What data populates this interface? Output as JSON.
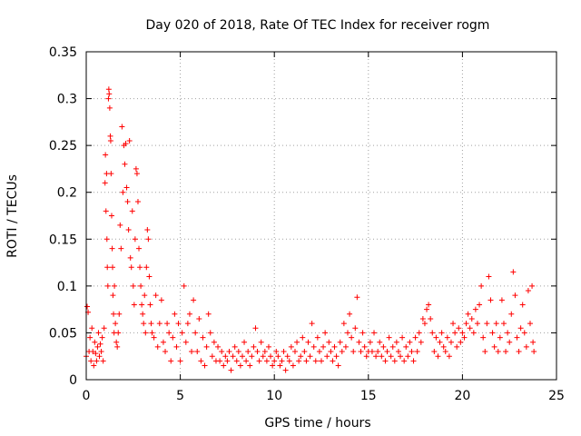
{
  "chart_data": {
    "type": "scatter",
    "title": "Day 020 of 2018, Rate Of TEC Index for receiver rogm",
    "xlabel": "GPS time / hours",
    "ylabel": "ROTI / TECUs",
    "xlim": [
      0,
      25
    ],
    "ylim": [
      0,
      0.35
    ],
    "xticks": [
      0,
      5,
      10,
      15,
      20,
      25
    ],
    "xtick_labels": [
      "0",
      "5",
      "10",
      "15",
      "20",
      "25"
    ],
    "yticks": [
      0,
      0.05,
      0.1,
      0.15,
      0.2,
      0.25,
      0.3,
      0.35
    ],
    "ytick_labels": [
      "0",
      "0.05",
      "0.1",
      "0.15",
      "0.2",
      "0.25",
      "0.3",
      "0.35"
    ],
    "grid": true,
    "marker": "+",
    "color": "#ff0000",
    "series": [
      {
        "name": "ROTI",
        "points": [
          [
            0.0,
            0.025
          ],
          [
            0.05,
            0.078
          ],
          [
            0.1,
            0.072
          ],
          [
            0.15,
            0.03
          ],
          [
            0.2,
            0.045
          ],
          [
            0.25,
            0.02
          ],
          [
            0.3,
            0.055
          ],
          [
            0.35,
            0.03
          ],
          [
            0.4,
            0.015
          ],
          [
            0.45,
            0.04
          ],
          [
            0.5,
            0.028
          ],
          [
            0.55,
            0.02
          ],
          [
            0.6,
            0.035
          ],
          [
            0.65,
            0.05
          ],
          [
            0.7,
            0.025
          ],
          [
            0.75,
            0.038
          ],
          [
            0.8,
            0.03
          ],
          [
            0.85,
            0.045
          ],
          [
            0.9,
            0.02
          ],
          [
            0.95,
            0.055
          ],
          [
            1.0,
            0.21
          ],
          [
            1.02,
            0.24
          ],
          [
            1.05,
            0.18
          ],
          [
            1.08,
            0.22
          ],
          [
            1.1,
            0.15
          ],
          [
            1.12,
            0.12
          ],
          [
            1.15,
            0.1
          ],
          [
            1.18,
            0.3
          ],
          [
            1.2,
            0.31
          ],
          [
            1.22,
            0.305
          ],
          [
            1.25,
            0.29
          ],
          [
            1.28,
            0.26
          ],
          [
            1.3,
            0.255
          ],
          [
            1.32,
            0.22
          ],
          [
            1.35,
            0.175
          ],
          [
            1.38,
            0.14
          ],
          [
            1.4,
            0.12
          ],
          [
            1.42,
            0.09
          ],
          [
            1.45,
            0.07
          ],
          [
            1.48,
            0.05
          ],
          [
            1.5,
            0.1
          ],
          [
            1.55,
            0.06
          ],
          [
            1.6,
            0.04
          ],
          [
            1.65,
            0.035
          ],
          [
            1.7,
            0.05
          ],
          [
            1.75,
            0.07
          ],
          [
            1.8,
            0.165
          ],
          [
            1.85,
            0.14
          ],
          [
            1.9,
            0.27
          ],
          [
            1.95,
            0.2
          ],
          [
            2.0,
            0.25
          ],
          [
            2.05,
            0.23
          ],
          [
            2.1,
            0.252
          ],
          [
            2.15,
            0.205
          ],
          [
            2.2,
            0.19
          ],
          [
            2.25,
            0.16
          ],
          [
            2.3,
            0.255
          ],
          [
            2.35,
            0.13
          ],
          [
            2.4,
            0.12
          ],
          [
            2.45,
            0.18
          ],
          [
            2.5,
            0.1
          ],
          [
            2.55,
            0.08
          ],
          [
            2.6,
            0.15
          ],
          [
            2.65,
            0.225
          ],
          [
            2.7,
            0.22
          ],
          [
            2.75,
            0.19
          ],
          [
            2.8,
            0.14
          ],
          [
            2.85,
            0.12
          ],
          [
            2.9,
            0.1
          ],
          [
            2.95,
            0.08
          ],
          [
            3.0,
            0.07
          ],
          [
            3.05,
            0.06
          ],
          [
            3.1,
            0.09
          ],
          [
            3.15,
            0.05
          ],
          [
            3.2,
            0.12
          ],
          [
            3.25,
            0.16
          ],
          [
            3.3,
            0.15
          ],
          [
            3.35,
            0.11
          ],
          [
            3.4,
            0.08
          ],
          [
            3.45,
            0.06
          ],
          [
            3.5,
            0.05
          ],
          [
            3.6,
            0.045
          ],
          [
            3.7,
            0.09
          ],
          [
            3.8,
            0.035
          ],
          [
            3.9,
            0.06
          ],
          [
            4.0,
            0.085
          ],
          [
            4.1,
            0.04
          ],
          [
            4.2,
            0.03
          ],
          [
            4.3,
            0.06
          ],
          [
            4.4,
            0.05
          ],
          [
            4.5,
            0.02
          ],
          [
            4.6,
            0.045
          ],
          [
            4.7,
            0.07
          ],
          [
            4.8,
            0.035
          ],
          [
            4.9,
            0.06
          ],
          [
            5.0,
            0.02
          ],
          [
            5.1,
            0.05
          ],
          [
            5.2,
            0.1
          ],
          [
            5.3,
            0.04
          ],
          [
            5.4,
            0.06
          ],
          [
            5.5,
            0.07
          ],
          [
            5.6,
            0.03
          ],
          [
            5.7,
            0.085
          ],
          [
            5.8,
            0.05
          ],
          [
            5.9,
            0.03
          ],
          [
            6.0,
            0.065
          ],
          [
            6.1,
            0.02
          ],
          [
            6.2,
            0.045
          ],
          [
            6.3,
            0.015
          ],
          [
            6.4,
            0.035
          ],
          [
            6.5,
            0.07
          ],
          [
            6.6,
            0.05
          ],
          [
            6.7,
            0.025
          ],
          [
            6.8,
            0.04
          ],
          [
            6.9,
            0.02
          ],
          [
            7.0,
            0.035
          ],
          [
            7.1,
            0.02
          ],
          [
            7.2,
            0.03
          ],
          [
            7.3,
            0.015
          ],
          [
            7.4,
            0.025
          ],
          [
            7.5,
            0.02
          ],
          [
            7.6,
            0.03
          ],
          [
            7.7,
            0.01
          ],
          [
            7.8,
            0.025
          ],
          [
            7.9,
            0.035
          ],
          [
            8.0,
            0.02
          ],
          [
            8.1,
            0.03
          ],
          [
            8.2,
            0.015
          ],
          [
            8.3,
            0.025
          ],
          [
            8.4,
            0.04
          ],
          [
            8.5,
            0.02
          ],
          [
            8.6,
            0.03
          ],
          [
            8.7,
            0.015
          ],
          [
            8.8,
            0.025
          ],
          [
            8.9,
            0.035
          ],
          [
            9.0,
            0.055
          ],
          [
            9.1,
            0.03
          ],
          [
            9.2,
            0.02
          ],
          [
            9.3,
            0.04
          ],
          [
            9.4,
            0.025
          ],
          [
            9.5,
            0.03
          ],
          [
            9.6,
            0.02
          ],
          [
            9.7,
            0.035
          ],
          [
            9.8,
            0.025
          ],
          [
            9.9,
            0.015
          ],
          [
            10.0,
            0.02
          ],
          [
            10.1,
            0.03
          ],
          [
            10.2,
            0.025
          ],
          [
            10.3,
            0.015
          ],
          [
            10.4,
            0.02
          ],
          [
            10.5,
            0.03
          ],
          [
            10.6,
            0.01
          ],
          [
            10.7,
            0.025
          ],
          [
            10.8,
            0.02
          ],
          [
            10.9,
            0.035
          ],
          [
            11.0,
            0.015
          ],
          [
            11.1,
            0.03
          ],
          [
            11.2,
            0.04
          ],
          [
            11.3,
            0.02
          ],
          [
            11.4,
            0.025
          ],
          [
            11.5,
            0.045
          ],
          [
            11.6,
            0.03
          ],
          [
            11.7,
            0.02
          ],
          [
            11.8,
            0.04
          ],
          [
            11.9,
            0.025
          ],
          [
            12.0,
            0.06
          ],
          [
            12.1,
            0.035
          ],
          [
            12.2,
            0.02
          ],
          [
            12.3,
            0.045
          ],
          [
            12.4,
            0.03
          ],
          [
            12.5,
            0.02
          ],
          [
            12.6,
            0.035
          ],
          [
            12.7,
            0.05
          ],
          [
            12.8,
            0.025
          ],
          [
            12.9,
            0.04
          ],
          [
            13.0,
            0.03
          ],
          [
            13.1,
            0.02
          ],
          [
            13.2,
            0.035
          ],
          [
            13.3,
            0.025
          ],
          [
            13.4,
            0.015
          ],
          [
            13.5,
            0.04
          ],
          [
            13.6,
            0.03
          ],
          [
            13.7,
            0.06
          ],
          [
            13.8,
            0.035
          ],
          [
            13.9,
            0.05
          ],
          [
            14.0,
            0.07
          ],
          [
            14.1,
            0.045
          ],
          [
            14.2,
            0.03
          ],
          [
            14.3,
            0.055
          ],
          [
            14.4,
            0.088
          ],
          [
            14.5,
            0.04
          ],
          [
            14.6,
            0.03
          ],
          [
            14.7,
            0.05
          ],
          [
            14.8,
            0.035
          ],
          [
            14.9,
            0.025
          ],
          [
            15.0,
            0.03
          ],
          [
            15.1,
            0.04
          ],
          [
            15.2,
            0.03
          ],
          [
            15.3,
            0.05
          ],
          [
            15.4,
            0.025
          ],
          [
            15.5,
            0.03
          ],
          [
            15.6,
            0.04
          ],
          [
            15.7,
            0.025
          ],
          [
            15.8,
            0.035
          ],
          [
            15.9,
            0.02
          ],
          [
            16.0,
            0.03
          ],
          [
            16.1,
            0.045
          ],
          [
            16.2,
            0.025
          ],
          [
            16.3,
            0.035
          ],
          [
            16.4,
            0.02
          ],
          [
            16.5,
            0.04
          ],
          [
            16.6,
            0.03
          ],
          [
            16.7,
            0.025
          ],
          [
            16.8,
            0.045
          ],
          [
            16.9,
            0.02
          ],
          [
            17.0,
            0.035
          ],
          [
            17.1,
            0.025
          ],
          [
            17.2,
            0.04
          ],
          [
            17.3,
            0.03
          ],
          [
            17.4,
            0.02
          ],
          [
            17.5,
            0.045
          ],
          [
            17.6,
            0.03
          ],
          [
            17.7,
            0.05
          ],
          [
            17.8,
            0.04
          ],
          [
            17.9,
            0.065
          ],
          [
            18.0,
            0.06
          ],
          [
            18.1,
            0.075
          ],
          [
            18.2,
            0.08
          ],
          [
            18.3,
            0.065
          ],
          [
            18.4,
            0.05
          ],
          [
            18.5,
            0.03
          ],
          [
            18.6,
            0.045
          ],
          [
            18.7,
            0.025
          ],
          [
            18.8,
            0.04
          ],
          [
            18.9,
            0.05
          ],
          [
            19.0,
            0.035
          ],
          [
            19.1,
            0.03
          ],
          [
            19.2,
            0.045
          ],
          [
            19.3,
            0.025
          ],
          [
            19.4,
            0.04
          ],
          [
            19.5,
            0.06
          ],
          [
            19.6,
            0.05
          ],
          [
            19.7,
            0.035
          ],
          [
            19.8,
            0.055
          ],
          [
            19.9,
            0.04
          ],
          [
            20.0,
            0.05
          ],
          [
            20.1,
            0.045
          ],
          [
            20.2,
            0.06
          ],
          [
            20.3,
            0.07
          ],
          [
            20.4,
            0.055
          ],
          [
            20.5,
            0.065
          ],
          [
            20.6,
            0.05
          ],
          [
            20.7,
            0.075
          ],
          [
            20.8,
            0.06
          ],
          [
            20.9,
            0.08
          ],
          [
            21.0,
            0.1
          ],
          [
            21.1,
            0.045
          ],
          [
            21.2,
            0.03
          ],
          [
            21.3,
            0.06
          ],
          [
            21.4,
            0.11
          ],
          [
            21.5,
            0.085
          ],
          [
            21.6,
            0.05
          ],
          [
            21.7,
            0.035
          ],
          [
            21.8,
            0.06
          ],
          [
            21.9,
            0.03
          ],
          [
            22.0,
            0.045
          ],
          [
            22.1,
            0.085
          ],
          [
            22.2,
            0.06
          ],
          [
            22.3,
            0.03
          ],
          [
            22.4,
            0.05
          ],
          [
            22.5,
            0.04
          ],
          [
            22.6,
            0.07
          ],
          [
            22.7,
            0.115
          ],
          [
            22.8,
            0.09
          ],
          [
            22.9,
            0.045
          ],
          [
            23.0,
            0.03
          ],
          [
            23.1,
            0.055
          ],
          [
            23.2,
            0.08
          ],
          [
            23.3,
            0.05
          ],
          [
            23.4,
            0.035
          ],
          [
            23.5,
            0.095
          ],
          [
            23.6,
            0.06
          ],
          [
            23.7,
            0.1
          ],
          [
            23.75,
            0.04
          ],
          [
            23.8,
            0.03
          ]
        ]
      }
    ]
  }
}
